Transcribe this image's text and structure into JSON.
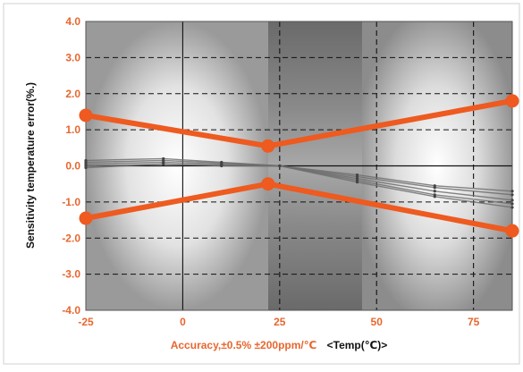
{
  "chart_data": {
    "type": "line",
    "title": "",
    "ylabel": "Sensitivity temperature error(%.)",
    "xlabel_note": "Accuracy,±0.5%  ±200ppm/℃",
    "xlabel": "<Temp(℃)>",
    "xlim": [
      -25,
      85
    ],
    "ylim": [
      -4.0,
      4.0
    ],
    "x_ticks": [
      -25,
      0,
      25,
      50,
      75
    ],
    "x_tick_labels": [
      "-25",
      "0",
      "25",
      "50",
      "75"
    ],
    "y_ticks": [
      -4,
      -3,
      -2,
      -1,
      0,
      1,
      2,
      3,
      4
    ],
    "y_tick_labels": [
      "-4.0",
      "-3.0",
      "-2.0",
      "-1.0",
      "0.0",
      "1.0",
      "2.0",
      "3.0",
      "4.0"
    ],
    "grid": true,
    "colors": {
      "limit": "#ee5a1f",
      "measured": "#6e6e6e",
      "tick_text": "#e8662e",
      "axis_label": "#111111"
    },
    "series": [
      {
        "role": "limit-upper",
        "x": [
          -25,
          22,
          85
        ],
        "y": [
          1.4,
          0.55,
          1.8
        ]
      },
      {
        "role": "limit-lower",
        "x": [
          -25,
          22,
          85
        ],
        "y": [
          -1.45,
          -0.5,
          -1.8
        ]
      },
      {
        "role": "measured",
        "x": [
          -25,
          -5,
          10,
          25,
          45,
          65,
          85
        ],
        "y": [
          0.15,
          0.2,
          0.1,
          0.0,
          -0.3,
          -0.6,
          -0.8
        ]
      },
      {
        "role": "measured",
        "x": [
          -25,
          -5,
          10,
          25,
          45,
          65,
          85
        ],
        "y": [
          0.05,
          0.1,
          0.05,
          0.0,
          -0.35,
          -0.7,
          -0.95
        ]
      },
      {
        "role": "measured",
        "x": [
          -25,
          -5,
          10,
          25,
          45,
          65,
          85
        ],
        "y": [
          -0.05,
          0.05,
          0.0,
          0.0,
          -0.4,
          -0.8,
          -1.05
        ]
      },
      {
        "role": "measured",
        "x": [
          -25,
          -5,
          10,
          25,
          45,
          65,
          85
        ],
        "y": [
          0.1,
          0.15,
          0.08,
          0.0,
          -0.25,
          -0.55,
          -0.7
        ]
      },
      {
        "role": "measured",
        "x": [
          -25,
          -5,
          10,
          25,
          45,
          65,
          85
        ],
        "y": [
          0.0,
          0.05,
          0.02,
          0.0,
          -0.45,
          -0.85,
          -1.15
        ]
      }
    ]
  }
}
